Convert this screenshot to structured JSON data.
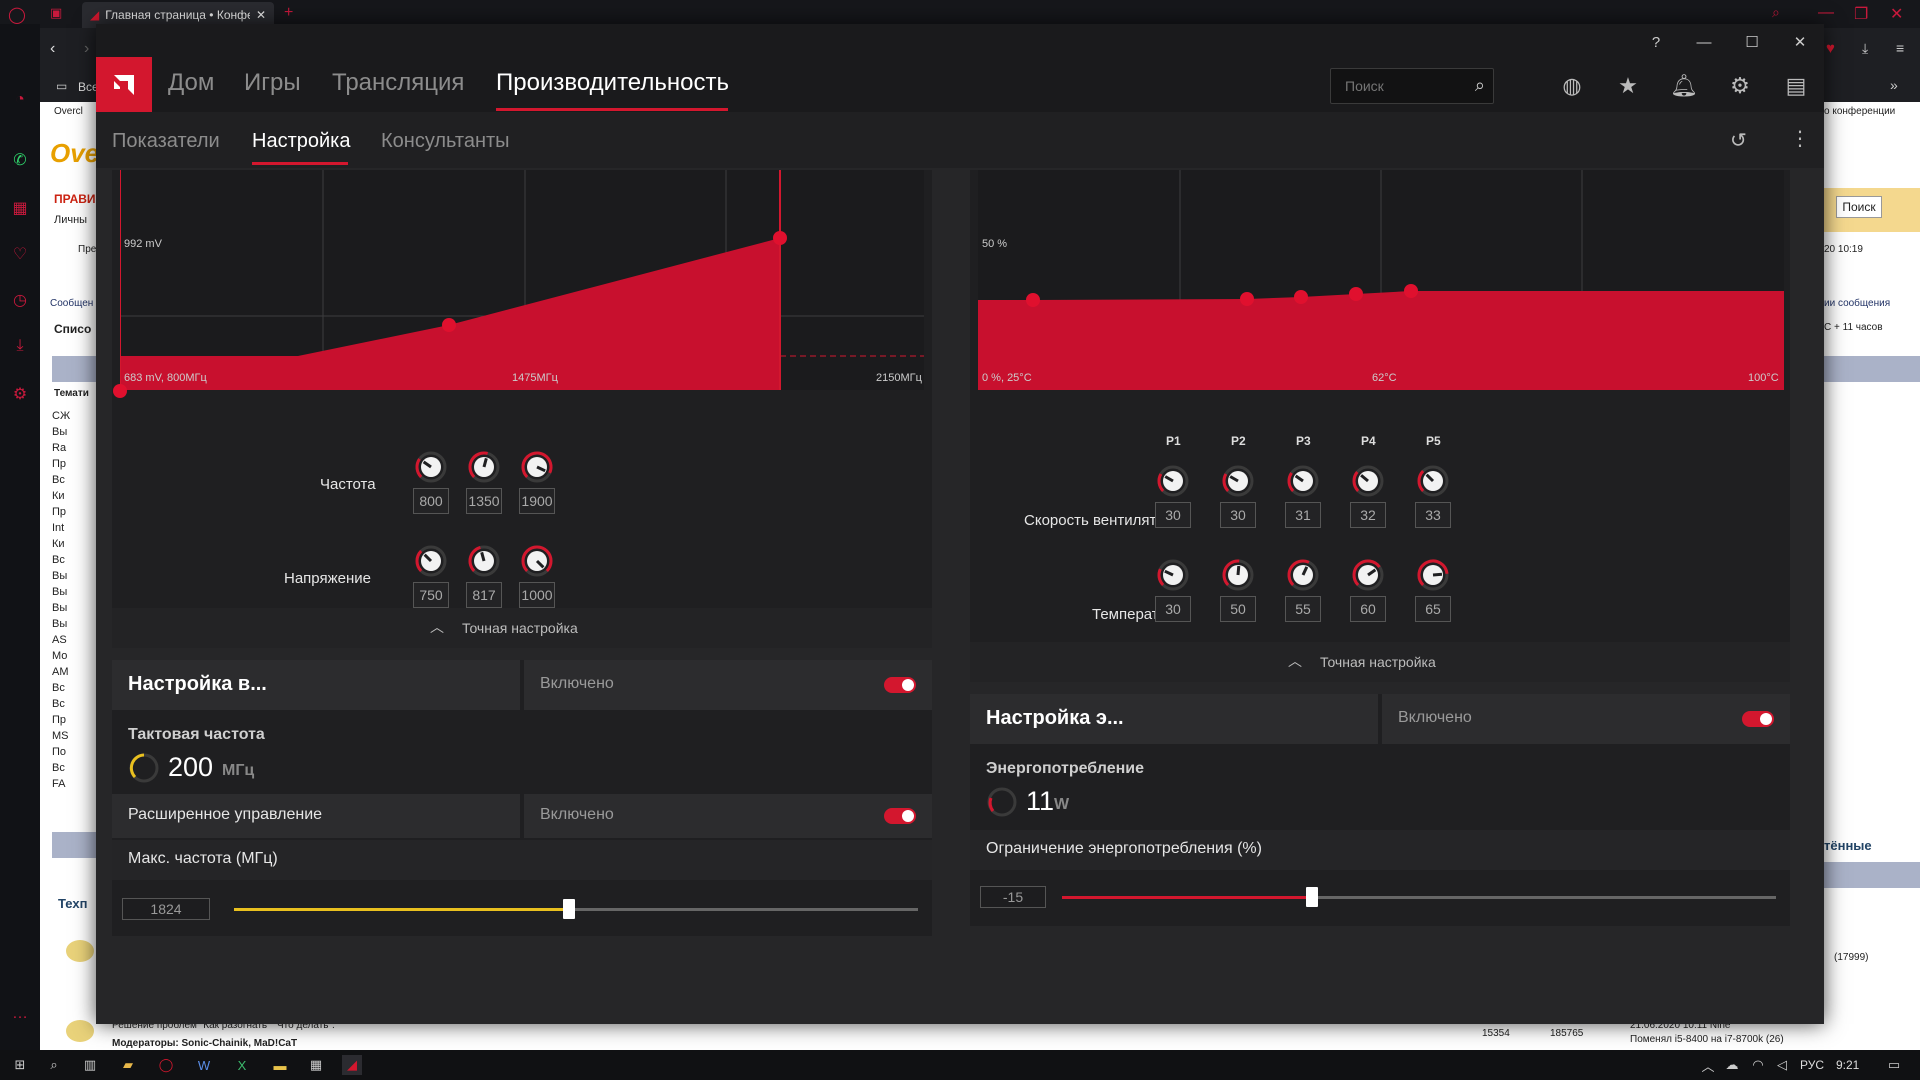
{
  "browser": {
    "tab_title": "Главная страница • Конфе",
    "bookmark_all": "Все",
    "bookmark_oc": "Overcl",
    "page_search_button": "Поиск",
    "page_frag_prav": "ПРАВИ",
    "page_frag_lich": "Личны",
    "page_frag_pre": "Пре",
    "page_frag_soob": "Сообщен",
    "page_frag_spis": "Списо",
    "page_frag_tema": "Темати",
    "page_frag_tekh": "Техп",
    "page_frag_conf": "о конференции",
    "page_frag_date": "20 10:19",
    "page_frag_msgs": "ии сообщения",
    "page_frag_hours": "С + 11 часов",
    "page_frag_read": "тённые",
    "page_frag_count": "(17999)",
    "page_frag_problems": "Решение проблем \"Как разогнать\" \"Что делать\".",
    "page_frag_mods": "Модераторы: Sonic-Chainik, MaD!CaT",
    "page_frag_n1": "15354",
    "page_frag_n2": "185765",
    "page_frag_last": "21.06.2020 10:11 Nine",
    "page_frag_changed": "Поменял i5-8400 на i7-8700k (26)",
    "forum_list": [
      "СЖ",
      "Вы",
      "Ra",
      "Пр",
      "Вс",
      "Ки",
      "Пр",
      "Int",
      "Ки",
      "Вс",
      "Вы",
      "Вы",
      "Вы",
      "Вы",
      "AS",
      "Мо",
      "AM",
      "Вс",
      "Вс",
      "Пр",
      "MS",
      "По",
      "Вс",
      "FA"
    ]
  },
  "amd": {
    "nav": [
      "Дом",
      "Игры",
      "Трансляция",
      "Производительность"
    ],
    "search_placeholder": "Поиск",
    "subnav": [
      "Показатели",
      "Настройка",
      "Консультанты"
    ]
  },
  "left_chart": {
    "label_top": "992 mV",
    "label_bl": "683 mV, 800МГц",
    "label_bm": "1475МГц",
    "label_br": "2150МГц"
  },
  "gpu_points": {
    "freq_label": "Частота",
    "freq_values": [
      "800",
      "1350",
      "1900"
    ],
    "volt_label": "Напряжение",
    "volt_values": [
      "750",
      "817",
      "1000"
    ],
    "fine_tune": "Точная настройка"
  },
  "right_chart": {
    "label_top": "50 %",
    "label_bl": "0 %, 25°C",
    "label_bm": "62°C",
    "label_br": "100°C"
  },
  "fan_points": {
    "p_tags": [
      "P1",
      "P2",
      "P3",
      "P4",
      "P5"
    ],
    "speed_label": "Скорость вентилятора",
    "speed_values": [
      "30",
      "30",
      "31",
      "32",
      "33"
    ],
    "temp_label": "Температура",
    "temp_values": [
      "30",
      "50",
      "55",
      "60",
      "65"
    ],
    "fine_tune": "Точная настройка"
  },
  "video_card": {
    "title": "Настройка в...",
    "status": "Включено",
    "clock_label": "Тактовая частота",
    "clock_value": "200",
    "clock_unit": "МГц",
    "adv_label": "Расширенное управление",
    "adv_status": "Включено",
    "max_freq_label": "Макс. частота (МГц)",
    "max_freq_value": "1824",
    "max_freq_fraction": 0.49
  },
  "power_card": {
    "title": "Настройка э...",
    "status": "Включено",
    "power_label": "Энергопотребление",
    "power_value": "11",
    "power_unit": "W",
    "limit_label": "Ограничение энергопотребления (%)",
    "limit_value": "-15",
    "limit_fraction": 0.35
  },
  "taskbar": {
    "lang": "РУС",
    "time": "9:21"
  },
  "colors": {
    "accent": "#d3172e",
    "slider_yellow": "#e9c01f"
  }
}
